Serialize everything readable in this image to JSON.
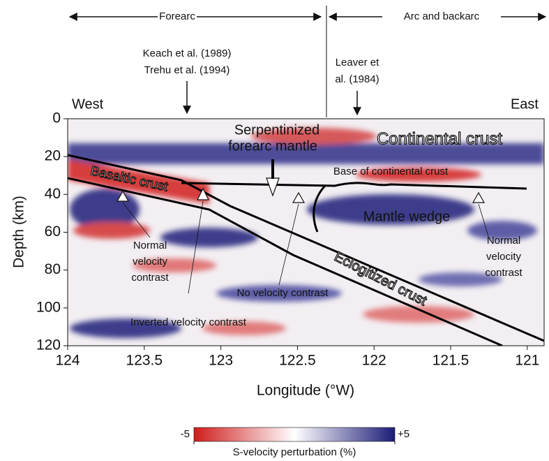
{
  "chart_data": {
    "type": "image",
    "xlabel": "Longitude (°W)",
    "ylabel": "Depth (km)",
    "xlim": [
      124,
      120.89
    ],
    "ylim": [
      0,
      120
    ],
    "y_inverted": true,
    "xticks": [
      124,
      123.5,
      123,
      122.5,
      122,
      121.5,
      121
    ],
    "yticks": [
      0,
      20,
      40,
      60,
      80,
      100,
      120
    ],
    "colorbar": {
      "label": "S-velocity perturbation (%)",
      "lim": [
        -5,
        5
      ],
      "ticks": [
        -5,
        {
          "value": 5,
          "label": "+5"
        }
      ],
      "colors": [
        "#d01c1c",
        "#ffffff",
        "#1c1c78"
      ]
    },
    "annotations": {
      "forearc": "Forearc",
      "arc": "Arc and backarc",
      "west": "West",
      "east": "East",
      "ref1": [
        "Keach et al. (1989)",
        "Trehu et al. (1994)"
      ],
      "ref2": [
        "Leaver et",
        "al. (1984)"
      ],
      "serpentinized": [
        "Serpentinized",
        "forearc mantle"
      ],
      "continental": "Continental crust",
      "base": "Base of continental crust",
      "basaltic": "Basaltic crust",
      "wedge": "Mantle wedge",
      "normal_left": [
        "Normal",
        "velocity",
        "contrast"
      ],
      "normal_right": [
        "Normal",
        "velocity",
        "contrast"
      ],
      "no_contrast": "No velocity contrast",
      "eclogitized": "Eclogitized crust",
      "inverted": "Inverted velocity contrast"
    }
  }
}
